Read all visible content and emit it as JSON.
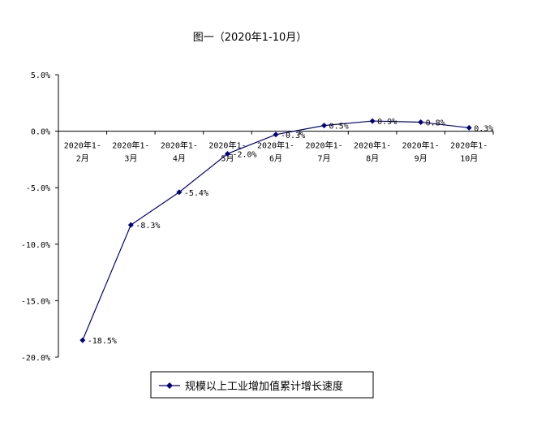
{
  "chart_data": {
    "type": "line",
    "title": "图一（2020年1-10月）",
    "categories": [
      [
        "2020年1-",
        "2月"
      ],
      [
        "2020年1-",
        "3月"
      ],
      [
        "2020年1-",
        "4月"
      ],
      [
        "2020年1-",
        "5月"
      ],
      [
        "2020年1-",
        "6月"
      ],
      [
        "2020年1-",
        "7月"
      ],
      [
        "2020年1-",
        "8月"
      ],
      [
        "2020年1-",
        "9月"
      ],
      [
        "2020年1-",
        "10月"
      ]
    ],
    "series": [
      {
        "name": "规模以上工业增加值累计增长速度",
        "values": [
          -18.5,
          -8.3,
          -5.4,
          -2.0,
          -0.3,
          0.5,
          0.9,
          0.8,
          0.3
        ],
        "labels": [
          "-18.5%",
          "-8.3%",
          "-5.4%",
          "-2.0%",
          "-0.3%",
          "0.5%",
          "0.9%",
          "0.8%",
          "0.3%"
        ],
        "color": "#000080"
      }
    ],
    "ylim": [
      -20,
      5
    ],
    "yticks": [
      5,
      0,
      -5,
      -10,
      -15,
      -20
    ],
    "ytick_labels": [
      "5.0%",
      "0.0%",
      "-5.0%",
      "-10.0%",
      "-15.0%",
      "-20.0%"
    ],
    "grid": false,
    "legend_position": "bottom",
    "axis_color": "#000000"
  }
}
